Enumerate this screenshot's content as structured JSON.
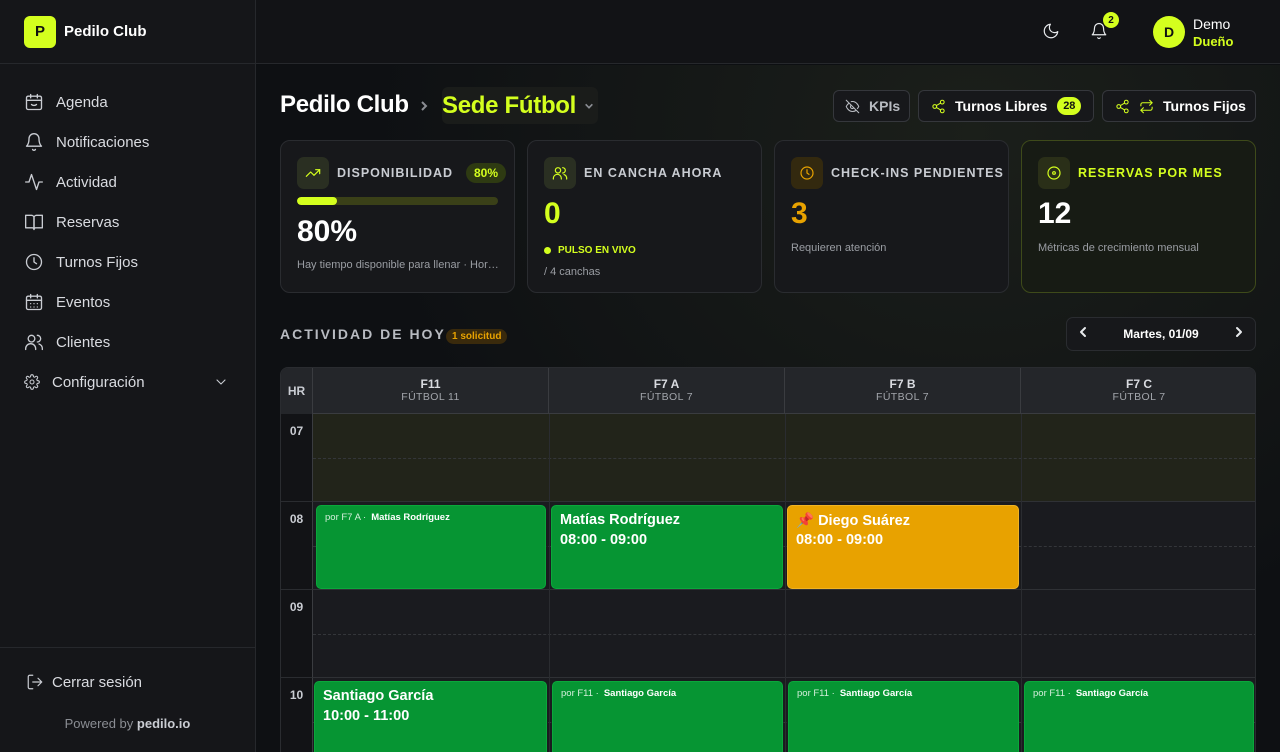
{
  "brand": {
    "logo_letter": "P",
    "name": "Pedilo Club",
    "accent": "#d4ff1e"
  },
  "sidebar": {
    "items": [
      {
        "label": "Agenda",
        "icon": "calendar-face-icon"
      },
      {
        "label": "Notificaciones",
        "icon": "bell-icon"
      },
      {
        "label": "Actividad",
        "icon": "activity-icon"
      },
      {
        "label": "Reservas",
        "icon": "book-icon"
      },
      {
        "label": "Turnos Fijos",
        "icon": "clock-icon"
      },
      {
        "label": "Eventos",
        "icon": "calendar-icon"
      },
      {
        "label": "Clientes",
        "icon": "users-icon"
      },
      {
        "label": "Configuración",
        "icon": "gear-icon"
      }
    ],
    "logout_label": "Cerrar sesión",
    "powered_prefix": "Powered by",
    "powered_brand": "pedilo.io"
  },
  "topbar": {
    "notification_count": "2",
    "user": {
      "initial": "D",
      "name": "Demo",
      "role": "Dueño"
    }
  },
  "header": {
    "title": "Pedilo Club",
    "sede": "Sede Fútbol",
    "buttons": {
      "kpis": "KPIs",
      "turnos_libres": "Turnos Libres",
      "turnos_libres_count": "28",
      "turnos_fijos": "Turnos Fijos"
    }
  },
  "cards": {
    "disponibilidad": {
      "title": "DISPONIBILIDAD",
      "badge": "80%",
      "value": "80%",
      "progress": 0.2,
      "subtitle": "Hay tiempo disponible para llenar · Horarios libres"
    },
    "en_cancha": {
      "title": "EN CANCHA AHORA",
      "value": "0",
      "live": "PULSO EN VIVO",
      "subtitle": "/ 4 canchas"
    },
    "checkins": {
      "title": "CHECK-INS PENDIENTES",
      "value": "3",
      "subtitle": "Requieren atención"
    },
    "reservas": {
      "title": "RESERVAS POR MES",
      "value": "12",
      "subtitle": "Métricas de crecimiento mensual"
    }
  },
  "activity": {
    "title": "ACTIVIDAD DE HOY",
    "badge": "1 solicitud",
    "date": "Martes, 01/09"
  },
  "schedule": {
    "hr_label": "HR",
    "courts": [
      {
        "name": "F11",
        "type": "FÚTBOL 11"
      },
      {
        "name": "F7 A",
        "type": "FÚTBOL 7"
      },
      {
        "name": "F7 B",
        "type": "FÚTBOL 7"
      },
      {
        "name": "F7 C",
        "type": "FÚTBOL 7"
      }
    ],
    "hours": [
      "07",
      "08",
      "09",
      "10"
    ],
    "bookings": {
      "b1": {
        "prefix": "por F7 A ·",
        "name": "Matías Rodríguez"
      },
      "b2": {
        "name": "Matías Rodríguez",
        "time": "08:00 - 09:00"
      },
      "b3": {
        "name": "📌 Diego Suárez",
        "time": "08:00 - 09:00"
      },
      "b4": {
        "name": "Santiago García",
        "time": "10:00 - 11:00"
      },
      "b5": {
        "prefix": "por F11 ·",
        "name": "Santiago García"
      },
      "b6": {
        "prefix": "por F11 ·",
        "name": "Santiago García"
      },
      "b7": {
        "prefix": "por F11 ·",
        "name": "Santiago García"
      }
    },
    "colors": {
      "confirmed": "#069533",
      "pending": "#e8a200"
    }
  }
}
